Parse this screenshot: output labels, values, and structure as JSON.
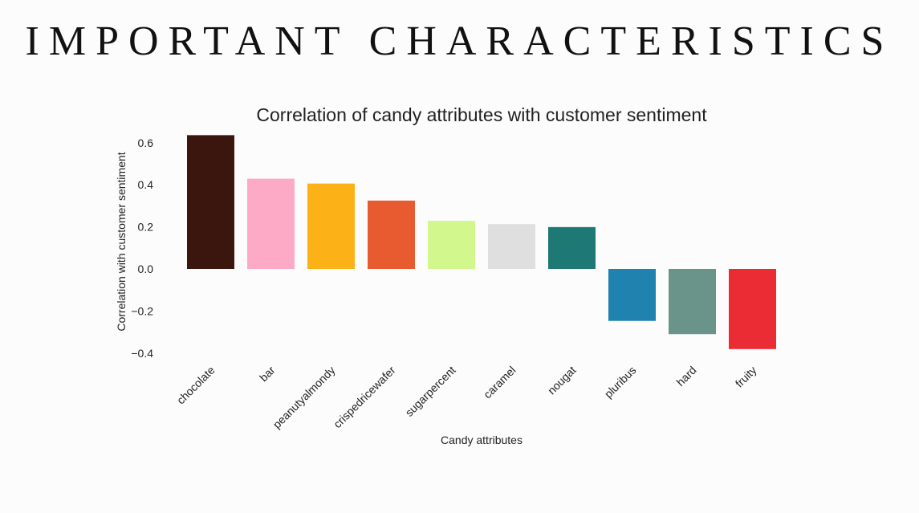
{
  "slide": {
    "title": "IMPORTANT CHARACTERISTICS"
  },
  "chart_data": {
    "type": "bar",
    "title": "Correlation of candy attributes with customer sentiment",
    "xlabel": "Candy attributes",
    "ylabel": "Correlation with customer sentiment",
    "categories": [
      "chocolate",
      "bar",
      "peanutyalmondy",
      "crispedricewafer",
      "sugarpercent",
      "caramel",
      "nougat",
      "pluribus",
      "hard",
      "fruity"
    ],
    "values": [
      0.636,
      0.429,
      0.406,
      0.325,
      0.229,
      0.213,
      0.199,
      -0.247,
      -0.31,
      -0.381
    ],
    "colors": [
      "#3a160f",
      "#fdaac7",
      "#fcb116",
      "#e85a2f",
      "#d2f78c",
      "#dfdfdf",
      "#1e7874",
      "#1f82af",
      "#6a9489",
      "#ec2c34"
    ],
    "yticks": [
      "0.6",
      "0.4",
      "0.2",
      "0.0",
      "−0.2",
      "−0.4"
    ],
    "ytick_values": [
      0.6,
      0.4,
      0.2,
      0.0,
      -0.2,
      -0.4
    ],
    "ylim": [
      -0.4,
      0.65
    ],
    "grid": false,
    "legend": "none"
  }
}
